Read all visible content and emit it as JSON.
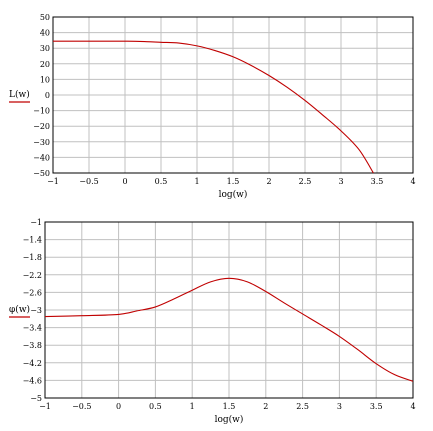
{
  "chart_data": [
    {
      "type": "line",
      "xlabel": "log(w)",
      "ylabel": "L(w)",
      "xlim": [
        -1,
        4
      ],
      "ylim": [
        -50,
        50
      ],
      "xticks": [
        "−1",
        "−0.5",
        "0",
        "0.5",
        "1",
        "1.5",
        "2",
        "2.5",
        "3",
        "3.5",
        "4"
      ],
      "yticks": [
        "50",
        "40",
        "30",
        "20",
        "10",
        "0",
        "−10",
        "−20",
        "−30",
        "−40",
        "−50"
      ],
      "grid": true,
      "color": "#c00000",
      "series": [
        {
          "x": [
            -1,
            -0.5,
            0,
            0.3,
            0.5,
            0.75,
            1,
            1.25,
            1.5,
            1.75,
            2,
            2.25,
            2.5,
            2.75,
            3,
            3.25,
            3.45
          ],
          "y": [
            34.5,
            34.5,
            34.5,
            34.2,
            33.8,
            33.3,
            31.5,
            28.5,
            24.5,
            19,
            12.5,
            5,
            -3.5,
            -13,
            -23,
            -35,
            -50
          ]
        }
      ]
    },
    {
      "type": "line",
      "xlabel": "log(w)",
      "ylabel": "φ(w)",
      "xlim": [
        -1,
        4
      ],
      "ylim": [
        -5,
        -1
      ],
      "xticks": [
        "−1",
        "−0.5",
        "0",
        "0.5",
        "1",
        "1.5",
        "2",
        "2.5",
        "3",
        "3.5",
        "4"
      ],
      "yticks": [
        "−1",
        "−1.4",
        "−1.8",
        "−2.2",
        "−2.6",
        "−3",
        "−3.4",
        "−3.8",
        "−4.2",
        "−4.6",
        "−5"
      ],
      "grid": true,
      "color": "#c00000",
      "series": [
        {
          "x": [
            -1,
            -0.5,
            0,
            0.25,
            0.5,
            0.75,
            1,
            1.25,
            1.5,
            1.75,
            2,
            2.25,
            2.5,
            2.75,
            3,
            3.25,
            3.5,
            3.75,
            4
          ],
          "y": [
            -3.15,
            -3.13,
            -3.1,
            -3.02,
            -2.93,
            -2.75,
            -2.55,
            -2.36,
            -2.28,
            -2.36,
            -2.58,
            -2.84,
            -3.09,
            -3.34,
            -3.6,
            -3.9,
            -4.22,
            -4.47,
            -4.62
          ]
        }
      ]
    }
  ]
}
